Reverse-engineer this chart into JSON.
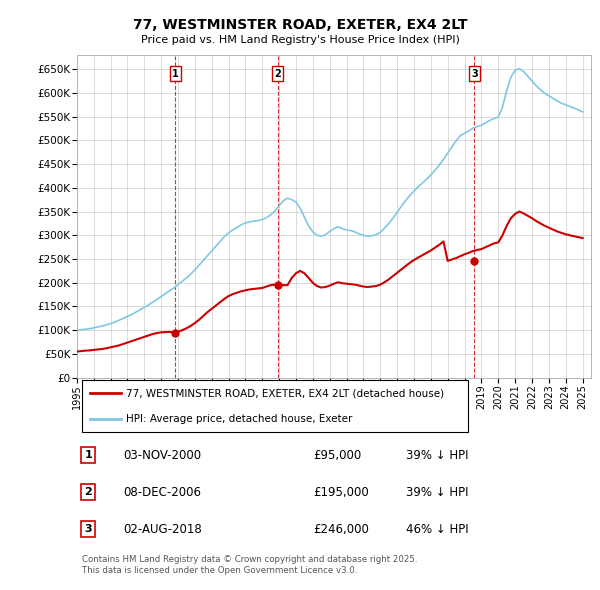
{
  "title": "77, WESTMINSTER ROAD, EXETER, EX4 2LT",
  "subtitle": "Price paid vs. HM Land Registry's House Price Index (HPI)",
  "hpi_color": "#7ec8e3",
  "price_color": "#cc0000",
  "background_color": "#ffffff",
  "grid_color": "#cccccc",
  "ylim": [
    0,
    680000
  ],
  "yticks": [
    0,
    50000,
    100000,
    150000,
    200000,
    250000,
    300000,
    350000,
    400000,
    450000,
    500000,
    550000,
    600000,
    650000
  ],
  "ytick_labels": [
    "£0",
    "£50K",
    "£100K",
    "£150K",
    "£200K",
    "£250K",
    "£300K",
    "£350K",
    "£400K",
    "£450K",
    "£500K",
    "£550K",
    "£600K",
    "£650K"
  ],
  "xlim_start": 1995.0,
  "xlim_end": 2025.5,
  "xticks": [
    1995,
    1996,
    1997,
    1998,
    1999,
    2000,
    2001,
    2002,
    2003,
    2004,
    2005,
    2006,
    2007,
    2008,
    2009,
    2010,
    2011,
    2012,
    2013,
    2014,
    2015,
    2016,
    2017,
    2018,
    2019,
    2020,
    2021,
    2022,
    2023,
    2024,
    2025
  ],
  "sale_markers": [
    {
      "num": 1,
      "year": 2000.84,
      "price": 95000,
      "date": "03-NOV-2000",
      "amount": "£95,000",
      "hpi_diff": "39% ↓ HPI"
    },
    {
      "num": 2,
      "year": 2006.92,
      "price": 195000,
      "date": "08-DEC-2006",
      "amount": "£195,000",
      "hpi_diff": "39% ↓ HPI"
    },
    {
      "num": 3,
      "year": 2018.58,
      "price": 246000,
      "date": "02-AUG-2018",
      "amount": "£246,000",
      "hpi_diff": "46% ↓ HPI"
    }
  ],
  "legend_line1": "77, WESTMINSTER ROAD, EXETER, EX4 2LT (detached house)",
  "legend_line2": "HPI: Average price, detached house, Exeter",
  "footer": "Contains HM Land Registry data © Crown copyright and database right 2025.\nThis data is licensed under the Open Government Licence v3.0.",
  "hpi_x": [
    1995.0,
    1995.25,
    1995.5,
    1995.75,
    1996.0,
    1996.25,
    1996.5,
    1996.75,
    1997.0,
    1997.25,
    1997.5,
    1997.75,
    1998.0,
    1998.25,
    1998.5,
    1998.75,
    1999.0,
    1999.25,
    1999.5,
    1999.75,
    2000.0,
    2000.25,
    2000.5,
    2000.75,
    2001.0,
    2001.25,
    2001.5,
    2001.75,
    2002.0,
    2002.25,
    2002.5,
    2002.75,
    2003.0,
    2003.25,
    2003.5,
    2003.75,
    2004.0,
    2004.25,
    2004.5,
    2004.75,
    2005.0,
    2005.25,
    2005.5,
    2005.75,
    2006.0,
    2006.25,
    2006.5,
    2006.75,
    2007.0,
    2007.25,
    2007.5,
    2007.75,
    2008.0,
    2008.25,
    2008.5,
    2008.75,
    2009.0,
    2009.25,
    2009.5,
    2009.75,
    2010.0,
    2010.25,
    2010.5,
    2010.75,
    2011.0,
    2011.25,
    2011.5,
    2011.75,
    2012.0,
    2012.25,
    2012.5,
    2012.75,
    2013.0,
    2013.25,
    2013.5,
    2013.75,
    2014.0,
    2014.25,
    2014.5,
    2014.75,
    2015.0,
    2015.25,
    2015.5,
    2015.75,
    2016.0,
    2016.25,
    2016.5,
    2016.75,
    2017.0,
    2017.25,
    2017.5,
    2017.75,
    2018.0,
    2018.25,
    2018.5,
    2018.75,
    2019.0,
    2019.25,
    2019.5,
    2019.75,
    2020.0,
    2020.25,
    2020.5,
    2020.75,
    2021.0,
    2021.25,
    2021.5,
    2021.75,
    2022.0,
    2022.25,
    2022.5,
    2022.75,
    2023.0,
    2023.25,
    2023.5,
    2023.75,
    2024.0,
    2024.25,
    2024.5,
    2024.75,
    2025.0
  ],
  "hpi_y": [
    100000,
    101000,
    102000,
    103000,
    105000,
    107000,
    109000,
    111000,
    114000,
    117000,
    121000,
    125000,
    129000,
    133000,
    138000,
    143000,
    148000,
    153000,
    159000,
    165000,
    171000,
    177000,
    183000,
    189000,
    196000,
    203000,
    210000,
    218000,
    227000,
    237000,
    247000,
    257000,
    267000,
    277000,
    287000,
    297000,
    305000,
    311000,
    317000,
    322000,
    326000,
    328000,
    330000,
    331000,
    333000,
    337000,
    343000,
    351000,
    362000,
    373000,
    378000,
    375000,
    370000,
    357000,
    338000,
    320000,
    307000,
    300000,
    298000,
    301000,
    308000,
    314000,
    318000,
    314000,
    311000,
    310000,
    307000,
    303000,
    300000,
    298000,
    299000,
    301000,
    306000,
    315000,
    325000,
    336000,
    348000,
    361000,
    373000,
    384000,
    393000,
    402000,
    410000,
    418000,
    427000,
    437000,
    448000,
    460000,
    473000,
    486000,
    499000,
    510000,
    515000,
    520000,
    526000,
    529000,
    532000,
    537000,
    542000,
    546000,
    549000,
    570000,
    605000,
    633000,
    648000,
    651000,
    645000,
    635000,
    625000,
    615000,
    607000,
    599000,
    594000,
    588000,
    583000,
    578000,
    575000,
    571000,
    568000,
    564000,
    560000
  ],
  "price_y": [
    55000,
    56000,
    57000,
    57500,
    58500,
    59500,
    60500,
    62000,
    64000,
    66000,
    68000,
    71000,
    74000,
    77000,
    80000,
    83000,
    86000,
    89000,
    92000,
    94000,
    95500,
    96000,
    96500,
    95000,
    97000,
    100000,
    104000,
    109000,
    115000,
    122000,
    130000,
    138000,
    145000,
    152000,
    159000,
    166000,
    172000,
    176000,
    179000,
    182000,
    184000,
    186000,
    187000,
    188000,
    189000,
    192000,
    195000,
    196000,
    196000,
    195000,
    195000,
    210000,
    220000,
    225000,
    220000,
    210000,
    200000,
    193000,
    190000,
    191000,
    194000,
    198000,
    201000,
    199000,
    198000,
    197000,
    196000,
    194000,
    192000,
    191000,
    192000,
    193000,
    196000,
    201000,
    207000,
    214000,
    221000,
    228000,
    235000,
    242000,
    248000,
    253000,
    258000,
    263000,
    268000,
    274000,
    280000,
    287000,
    246000,
    249000,
    252000,
    256000,
    260000,
    263000,
    267000,
    269000,
    271000,
    275000,
    279000,
    283000,
    285000,
    300000,
    320000,
    336000,
    345000,
    350000,
    346000,
    341000,
    336000,
    330000,
    325000,
    320000,
    316000,
    312000,
    308000,
    305000,
    302000,
    300000,
    298000,
    296000,
    294000
  ]
}
